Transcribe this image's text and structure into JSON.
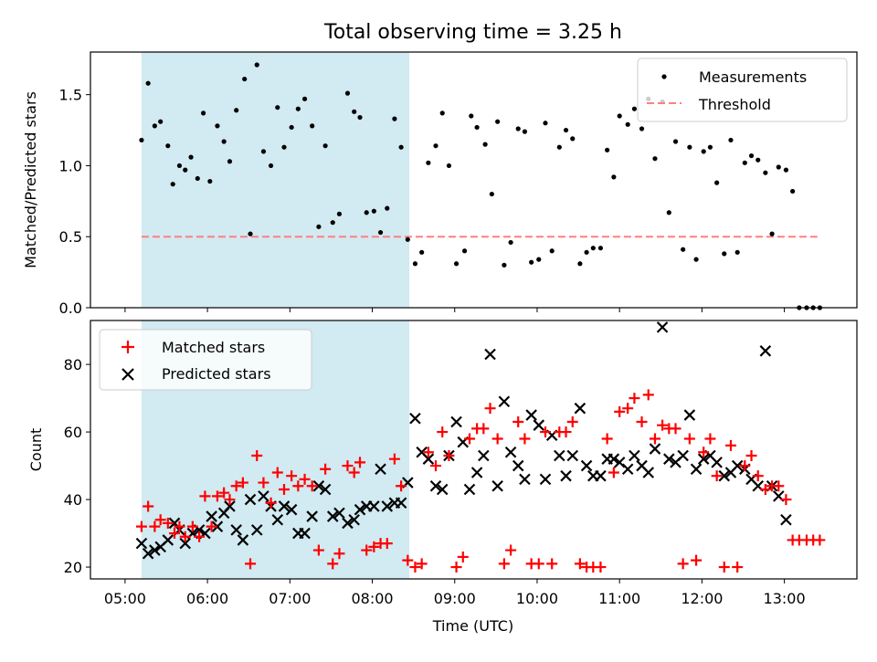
{
  "title": "Total observing time = 3.25 h",
  "colors": {
    "shade": "#add8e6",
    "matched": "#ff0000",
    "predicted": "#000000",
    "threshold": "#ff7f7f"
  },
  "top": {
    "ylabel": "Matched/Predicted stars",
    "ylim": [
      0,
      1.8
    ],
    "yticks": [
      0.0,
      0.5,
      1.0,
      1.5
    ],
    "legend": {
      "measurements": "Measurements",
      "threshold": "Threshold"
    }
  },
  "bottom": {
    "xlabel": "Time (UTC)",
    "ylabel": "Count",
    "ylim": [
      16.5,
      93
    ],
    "yticks": [
      20,
      40,
      60,
      80
    ],
    "legend": {
      "matched": "Matched stars",
      "predicted": "Predicted stars"
    }
  },
  "x_ticks": [
    "05:00",
    "06:00",
    "07:00",
    "08:00",
    "09:00",
    "10:00",
    "11:00",
    "12:00",
    "13:00"
  ],
  "chart_data": {
    "type": "scatter",
    "x_axis": "time (hours UTC)",
    "xlim": [
      4.58,
      13.88
    ],
    "shaded_interval": [
      5.2,
      8.45
    ],
    "threshold": {
      "value": 0.5,
      "x_range": [
        5.2,
        13.4
      ]
    },
    "ratio": [
      [
        5.2,
        1.18
      ],
      [
        5.28,
        1.58
      ],
      [
        5.36,
        1.28
      ],
      [
        5.43,
        1.31
      ],
      [
        5.52,
        1.14
      ],
      [
        5.58,
        0.87
      ],
      [
        5.66,
        1.0
      ],
      [
        5.73,
        0.97
      ],
      [
        5.8,
        1.06
      ],
      [
        5.88,
        0.91
      ],
      [
        5.95,
        1.37
      ],
      [
        6.03,
        0.89
      ],
      [
        6.12,
        1.28
      ],
      [
        6.2,
        1.17
      ],
      [
        6.27,
        1.03
      ],
      [
        6.35,
        1.39
      ],
      [
        6.45,
        1.61
      ],
      [
        6.52,
        0.52
      ],
      [
        6.6,
        1.71
      ],
      [
        6.68,
        1.1
      ],
      [
        6.77,
        1.0
      ],
      [
        6.85,
        1.41
      ],
      [
        6.93,
        1.13
      ],
      [
        7.02,
        1.27
      ],
      [
        7.1,
        1.4
      ],
      [
        7.18,
        1.47
      ],
      [
        7.27,
        1.28
      ],
      [
        7.35,
        0.57
      ],
      [
        7.43,
        1.14
      ],
      [
        7.52,
        0.6
      ],
      [
        7.6,
        0.66
      ],
      [
        7.7,
        1.51
      ],
      [
        7.78,
        1.38
      ],
      [
        7.85,
        1.34
      ],
      [
        7.93,
        0.67
      ],
      [
        8.02,
        0.68
      ],
      [
        8.1,
        0.53
      ],
      [
        8.18,
        0.7
      ],
      [
        8.27,
        1.33
      ],
      [
        8.35,
        1.13
      ],
      [
        8.43,
        0.48
      ],
      [
        8.52,
        0.31
      ],
      [
        8.6,
        0.39
      ],
      [
        8.68,
        1.02
      ],
      [
        8.77,
        1.14
      ],
      [
        8.85,
        1.37
      ],
      [
        8.93,
        1.0
      ],
      [
        9.02,
        0.31
      ],
      [
        9.12,
        0.4
      ],
      [
        9.2,
        1.35
      ],
      [
        9.27,
        1.27
      ],
      [
        9.37,
        1.15
      ],
      [
        9.45,
        0.8
      ],
      [
        9.52,
        1.31
      ],
      [
        9.6,
        0.3
      ],
      [
        9.68,
        0.46
      ],
      [
        9.77,
        1.26
      ],
      [
        9.85,
        1.24
      ],
      [
        9.93,
        0.32
      ],
      [
        10.02,
        0.34
      ],
      [
        10.1,
        1.3
      ],
      [
        10.18,
        0.4
      ],
      [
        10.27,
        1.13
      ],
      [
        10.35,
        1.25
      ],
      [
        10.43,
        1.19
      ],
      [
        10.52,
        0.31
      ],
      [
        10.6,
        0.39
      ],
      [
        10.68,
        0.42
      ],
      [
        10.77,
        0.42
      ],
      [
        10.85,
        1.11
      ],
      [
        10.93,
        0.92
      ],
      [
        11.0,
        1.35
      ],
      [
        11.1,
        1.29
      ],
      [
        11.18,
        1.4
      ],
      [
        11.27,
        1.26
      ],
      [
        11.35,
        1.47
      ],
      [
        11.43,
        1.05
      ],
      [
        11.52,
        1.45
      ],
      [
        11.6,
        0.67
      ],
      [
        11.68,
        1.17
      ],
      [
        11.77,
        0.41
      ],
      [
        11.85,
        1.13
      ],
      [
        11.93,
        0.34
      ],
      [
        12.02,
        1.1
      ],
      [
        12.1,
        1.13
      ],
      [
        12.18,
        0.88
      ],
      [
        12.27,
        0.38
      ],
      [
        12.35,
        1.18
      ],
      [
        12.43,
        0.39
      ],
      [
        12.52,
        1.02
      ],
      [
        12.6,
        1.07
      ],
      [
        12.68,
        1.04
      ],
      [
        12.77,
        0.95
      ],
      [
        12.85,
        0.52
      ],
      [
        12.93,
        0.99
      ],
      [
        13.02,
        0.97
      ],
      [
        13.1,
        0.82
      ],
      [
        13.18,
        0.0
      ],
      [
        13.27,
        0.0
      ],
      [
        13.35,
        0.0
      ],
      [
        13.43,
        0.0
      ]
    ],
    "matched": [
      [
        5.2,
        32
      ],
      [
        5.28,
        38
      ],
      [
        5.36,
        32
      ],
      [
        5.43,
        34
      ],
      [
        5.52,
        33
      ],
      [
        5.6,
        30
      ],
      [
        5.66,
        32
      ],
      [
        5.73,
        29
      ],
      [
        5.82,
        32
      ],
      [
        5.9,
        29
      ],
      [
        5.97,
        41
      ],
      [
        6.05,
        32
      ],
      [
        6.12,
        41
      ],
      [
        6.2,
        42
      ],
      [
        6.27,
        40
      ],
      [
        6.35,
        44
      ],
      [
        6.43,
        45
      ],
      [
        6.52,
        21
      ],
      [
        6.6,
        53
      ],
      [
        6.68,
        45
      ],
      [
        6.77,
        39
      ],
      [
        6.85,
        48
      ],
      [
        6.93,
        43
      ],
      [
        7.02,
        47
      ],
      [
        7.1,
        44
      ],
      [
        7.18,
        46
      ],
      [
        7.27,
        44
      ],
      [
        7.35,
        25
      ],
      [
        7.43,
        49
      ],
      [
        7.52,
        21
      ],
      [
        7.6,
        24
      ],
      [
        7.7,
        50
      ],
      [
        7.78,
        48
      ],
      [
        7.85,
        51
      ],
      [
        7.93,
        25
      ],
      [
        8.02,
        26
      ],
      [
        8.1,
        27
      ],
      [
        8.18,
        27
      ],
      [
        8.27,
        52
      ],
      [
        8.35,
        44
      ],
      [
        8.43,
        22
      ],
      [
        8.52,
        20
      ],
      [
        8.6,
        21
      ],
      [
        8.68,
        54
      ],
      [
        8.77,
        50
      ],
      [
        8.85,
        60
      ],
      [
        8.93,
        53
      ],
      [
        9.02,
        20
      ],
      [
        9.1,
        23
      ],
      [
        9.18,
        58
      ],
      [
        9.27,
        61
      ],
      [
        9.35,
        61
      ],
      [
        9.43,
        67
      ],
      [
        9.52,
        58
      ],
      [
        9.6,
        21
      ],
      [
        9.68,
        25
      ],
      [
        9.77,
        63
      ],
      [
        9.85,
        58
      ],
      [
        9.93,
        21
      ],
      [
        10.02,
        21
      ],
      [
        10.1,
        60
      ],
      [
        10.18,
        21
      ],
      [
        10.27,
        60
      ],
      [
        10.35,
        60
      ],
      [
        10.43,
        63
      ],
      [
        10.52,
        21
      ],
      [
        10.6,
        20
      ],
      [
        10.68,
        20
      ],
      [
        10.77,
        20
      ],
      [
        10.85,
        58
      ],
      [
        10.93,
        48
      ],
      [
        11.0,
        66
      ],
      [
        11.1,
        67
      ],
      [
        11.18,
        70
      ],
      [
        11.27,
        63
      ],
      [
        11.35,
        71
      ],
      [
        11.43,
        58
      ],
      [
        11.52,
        62
      ],
      [
        11.6,
        61
      ],
      [
        11.68,
        61
      ],
      [
        11.77,
        21
      ],
      [
        11.85,
        58
      ],
      [
        11.93,
        22
      ],
      [
        12.02,
        54
      ],
      [
        12.1,
        58
      ],
      [
        12.18,
        47
      ],
      [
        12.27,
        20
      ],
      [
        12.35,
        56
      ],
      [
        12.43,
        20
      ],
      [
        12.52,
        50
      ],
      [
        12.6,
        53
      ],
      [
        12.68,
        47
      ],
      [
        12.77,
        43
      ],
      [
        12.85,
        44
      ],
      [
        12.93,
        44
      ],
      [
        13.02,
        40
      ],
      [
        13.1,
        28
      ],
      [
        13.18,
        28
      ],
      [
        13.27,
        28
      ],
      [
        13.35,
        28
      ],
      [
        13.43,
        28
      ]
    ],
    "predicted": [
      [
        5.2,
        27
      ],
      [
        5.28,
        24
      ],
      [
        5.36,
        25
      ],
      [
        5.43,
        26
      ],
      [
        5.52,
        28
      ],
      [
        5.6,
        33
      ],
      [
        5.66,
        31
      ],
      [
        5.73,
        27
      ],
      [
        5.82,
        30
      ],
      [
        5.9,
        31
      ],
      [
        5.97,
        30
      ],
      [
        6.05,
        35
      ],
      [
        6.12,
        32
      ],
      [
        6.2,
        36
      ],
      [
        6.27,
        38
      ],
      [
        6.35,
        31
      ],
      [
        6.43,
        28
      ],
      [
        6.52,
        40
      ],
      [
        6.6,
        31
      ],
      [
        6.68,
        41
      ],
      [
        6.77,
        38
      ],
      [
        6.85,
        34
      ],
      [
        6.93,
        38
      ],
      [
        7.02,
        37
      ],
      [
        7.1,
        30
      ],
      [
        7.18,
        30
      ],
      [
        7.27,
        35
      ],
      [
        7.35,
        44
      ],
      [
        7.43,
        43
      ],
      [
        7.52,
        35
      ],
      [
        7.6,
        36
      ],
      [
        7.7,
        33
      ],
      [
        7.78,
        34
      ],
      [
        7.85,
        37
      ],
      [
        7.93,
        38
      ],
      [
        8.02,
        38
      ],
      [
        8.1,
        49
      ],
      [
        8.18,
        38
      ],
      [
        8.27,
        39
      ],
      [
        8.35,
        39
      ],
      [
        8.43,
        45
      ],
      [
        8.52,
        64
      ],
      [
        8.6,
        54
      ],
      [
        8.68,
        52
      ],
      [
        8.77,
        44
      ],
      [
        8.85,
        43
      ],
      [
        8.93,
        53
      ],
      [
        9.02,
        63
      ],
      [
        9.1,
        57
      ],
      [
        9.18,
        43
      ],
      [
        9.27,
        48
      ],
      [
        9.35,
        53
      ],
      [
        9.43,
        83
      ],
      [
        9.52,
        44
      ],
      [
        9.6,
        69
      ],
      [
        9.68,
        54
      ],
      [
        9.77,
        50
      ],
      [
        9.85,
        46
      ],
      [
        9.93,
        65
      ],
      [
        10.02,
        62
      ],
      [
        10.1,
        46
      ],
      [
        10.18,
        59
      ],
      [
        10.27,
        53
      ],
      [
        10.35,
        47
      ],
      [
        10.43,
        53
      ],
      [
        10.52,
        67
      ],
      [
        10.6,
        50
      ],
      [
        10.68,
        47
      ],
      [
        10.77,
        47
      ],
      [
        10.85,
        52
      ],
      [
        10.93,
        52
      ],
      [
        11.0,
        51
      ],
      [
        11.1,
        49
      ],
      [
        11.18,
        53
      ],
      [
        11.27,
        50
      ],
      [
        11.35,
        48
      ],
      [
        11.43,
        55
      ],
      [
        11.52,
        91
      ],
      [
        11.6,
        52
      ],
      [
        11.68,
        51
      ],
      [
        11.77,
        53
      ],
      [
        11.85,
        65
      ],
      [
        11.93,
        49
      ],
      [
        12.02,
        52
      ],
      [
        12.1,
        53
      ],
      [
        12.18,
        51
      ],
      [
        12.27,
        47
      ],
      [
        12.35,
        48
      ],
      [
        12.43,
        50
      ],
      [
        12.52,
        49
      ],
      [
        12.6,
        46
      ],
      [
        12.68,
        44
      ],
      [
        12.77,
        84
      ],
      [
        12.85,
        44
      ],
      [
        12.93,
        41
      ],
      [
        13.02,
        34
      ]
    ]
  }
}
